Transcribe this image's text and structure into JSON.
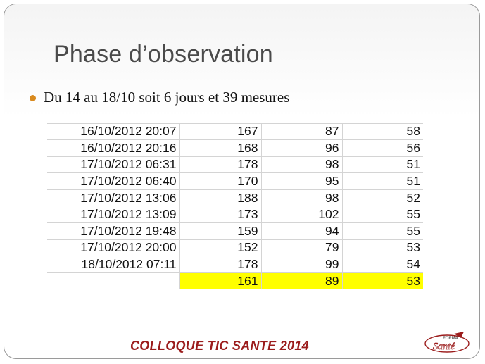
{
  "title": "Phase d’observation",
  "bullet": "Du 14 au 18/10 soit 6 jours et 39 mesures",
  "table": {
    "rows": [
      {
        "datetime": "16/10/2012 20:07",
        "v1": "167",
        "v2": "87",
        "v3": "58"
      },
      {
        "datetime": "16/10/2012 20:16",
        "v1": "168",
        "v2": "96",
        "v3": "56"
      },
      {
        "datetime": "17/10/2012 06:31",
        "v1": "178",
        "v2": "98",
        "v3": "51"
      },
      {
        "datetime": "17/10/2012 06:40",
        "v1": "170",
        "v2": "95",
        "v3": "51"
      },
      {
        "datetime": "17/10/2012 13:06",
        "v1": "188",
        "v2": "98",
        "v3": "52"
      },
      {
        "datetime": "17/10/2012 13:09",
        "v1": "173",
        "v2": "102",
        "v3": "55"
      },
      {
        "datetime": "17/10/2012 19:48",
        "v1": "159",
        "v2": "94",
        "v3": "55"
      },
      {
        "datetime": "17/10/2012 20:00",
        "v1": "152",
        "v2": "79",
        "v3": "53"
      },
      {
        "datetime": "18/10/2012 07:11",
        "v1": "178",
        "v2": "99",
        "v3": "54"
      }
    ],
    "summary": {
      "v1": "161",
      "v2": "89",
      "v3": "53"
    },
    "highlight_color": "#ffff00"
  },
  "footer": "COLLOQUE TIC SANTE 2014",
  "logo": {
    "top_text": "FORMA",
    "main_text": "Santé",
    "accent_color": "#9b1c1c",
    "icon": "formatic-sante-logo"
  },
  "colors": {
    "bullet": "#d98a1e",
    "title": "#4a4a4a",
    "footer": "#9b1c1c"
  }
}
